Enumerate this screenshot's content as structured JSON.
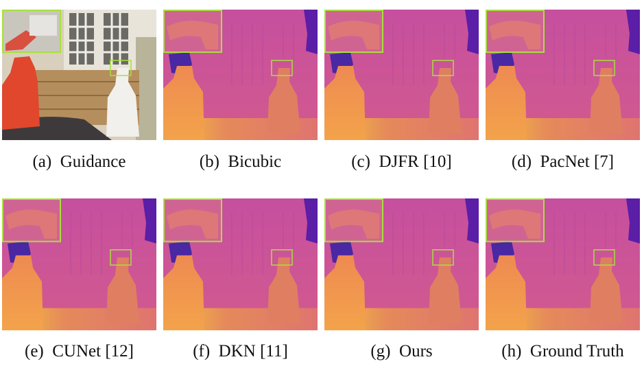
{
  "figure": {
    "panels": [
      {
        "caption": "(a)  Guidance"
      },
      {
        "caption": "(b)  Bicubic"
      },
      {
        "caption": "(c)  DJFR [10]"
      },
      {
        "caption": "(d)  PacNet [7]"
      },
      {
        "caption": "(e)  CUNet [12]"
      },
      {
        "caption": "(f)  DKN [11]"
      },
      {
        "caption": "(g)  Ours"
      },
      {
        "caption": "(h)  Ground Truth"
      }
    ]
  }
}
